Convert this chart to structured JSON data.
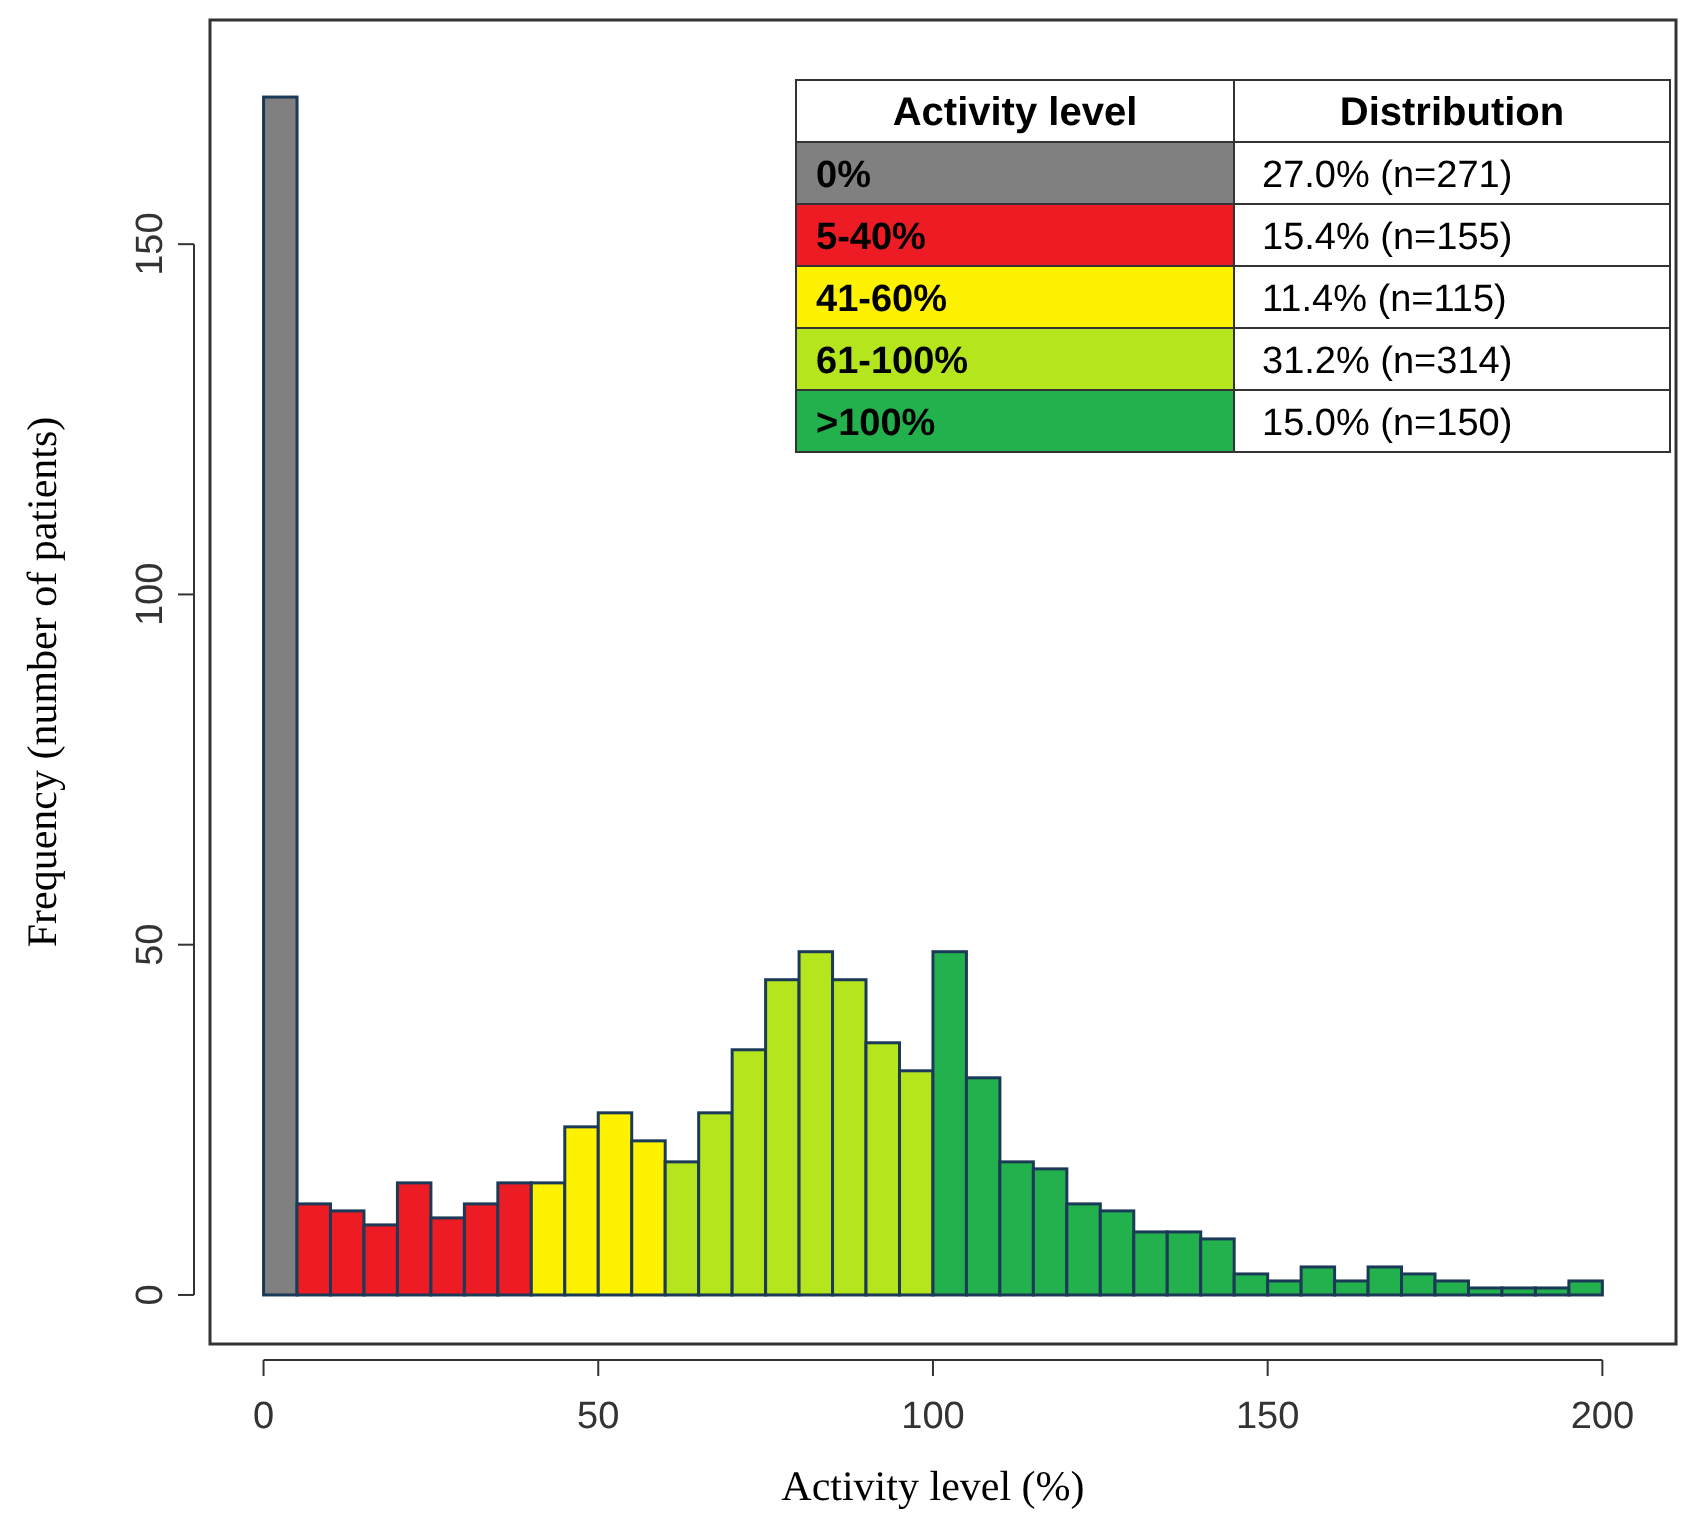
{
  "chart_data": {
    "type": "histogram",
    "xlabel": "Activity level (%)",
    "ylabel": "Frequency (number of patients)",
    "bins": [
      0,
      5,
      10,
      15,
      20,
      25,
      30,
      35,
      40,
      45,
      50,
      55,
      60,
      65,
      70,
      75,
      80,
      85,
      90,
      95,
      100,
      105,
      110,
      115,
      120,
      125,
      130,
      135,
      140,
      145,
      150,
      155,
      160,
      165,
      170,
      175,
      180,
      185,
      190,
      195,
      200
    ],
    "series": [
      {
        "name": "0%",
        "color": "#808080",
        "values": [
          171,
          null,
          null,
          null,
          null,
          null,
          null,
          null,
          null,
          null,
          null,
          null,
          null,
          null,
          null,
          null,
          null,
          null,
          null,
          null,
          null,
          null,
          null,
          null,
          null,
          null,
          null,
          null,
          null,
          null,
          null,
          null,
          null,
          null,
          null,
          null,
          null,
          null,
          null,
          null
        ]
      },
      {
        "name": "5-40%",
        "color": "#ed1c24",
        "values": [
          null,
          13,
          12,
          10,
          16,
          11,
          13,
          16,
          null,
          null,
          null,
          null,
          null,
          null,
          null,
          null,
          null,
          null,
          null,
          null,
          null,
          null,
          null,
          null,
          null,
          null,
          null,
          null,
          null,
          null,
          null,
          null,
          null,
          null,
          null,
          null,
          null,
          null,
          null,
          null
        ]
      },
      {
        "name": "41-60%",
        "color": "#fff200",
        "values": [
          null,
          null,
          null,
          null,
          null,
          null,
          null,
          null,
          16,
          24,
          26,
          22,
          null,
          null,
          null,
          null,
          null,
          null,
          null,
          null,
          null,
          null,
          null,
          null,
          null,
          null,
          null,
          null,
          null,
          null,
          null,
          null,
          null,
          null,
          null,
          null,
          null,
          null,
          null,
          null
        ]
      },
      {
        "name": "61-100%",
        "color": "#b5e61d",
        "values": [
          null,
          null,
          null,
          null,
          null,
          null,
          null,
          null,
          null,
          null,
          null,
          null,
          19,
          26,
          35,
          45,
          49,
          45,
          36,
          32,
          null,
          null,
          null,
          null,
          null,
          null,
          null,
          null,
          null,
          null,
          null,
          null,
          null,
          null,
          null,
          null,
          null,
          null,
          null,
          null
        ]
      },
      {
        "name": ">100%",
        "color": "#22b14c",
        "values": [
          null,
          null,
          null,
          null,
          null,
          null,
          null,
          null,
          null,
          null,
          null,
          null,
          null,
          null,
          null,
          null,
          null,
          null,
          null,
          null,
          49,
          31,
          19,
          18,
          13,
          12,
          9,
          9,
          8,
          3,
          2,
          4,
          2,
          4,
          3,
          2,
          1,
          1,
          1,
          2
        ]
      }
    ],
    "legend_title": "Activity level",
    "annotations": [
      "Distribution",
      "27.0% (n=271)",
      "15.4% (n=155)",
      "11.4% (n=115)",
      "31.2% (n=314)",
      "15.0% (n=150)"
    ],
    "xlim": [
      -8,
      211
    ],
    "xticks": [
      0,
      50,
      100,
      150,
      200
    ],
    "ylim": [
      -7,
      182
    ],
    "yticks": [
      0,
      50,
      100,
      150
    ],
    "grid": false,
    "legend": "top right"
  }
}
